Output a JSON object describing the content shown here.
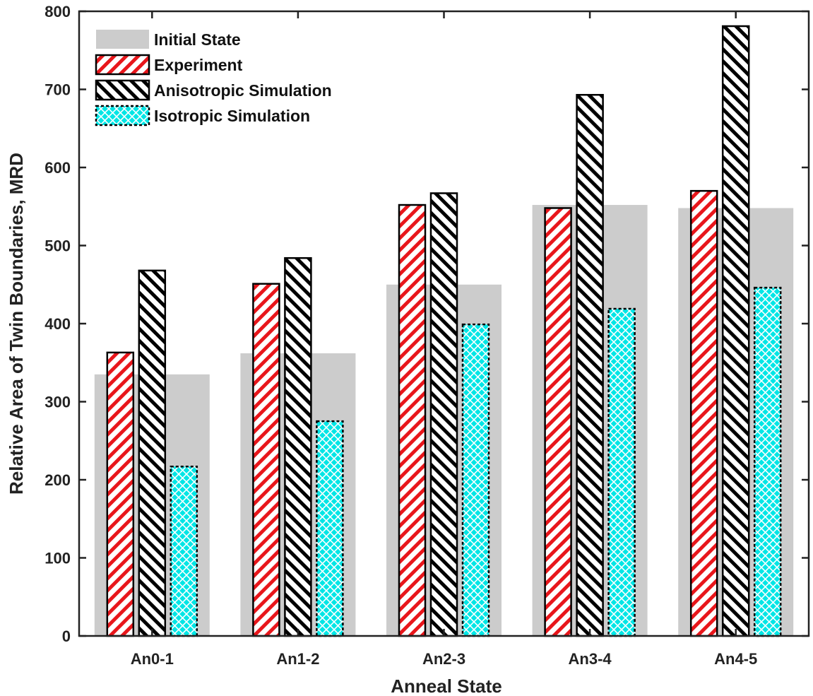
{
  "chart_data": {
    "type": "bar",
    "xlabel": "Anneal State",
    "ylabel": "Relative Area of Twin Boundaries, MRD",
    "categories": [
      "An0-1",
      "An1-2",
      "An2-3",
      "An3-4",
      "An4-5"
    ],
    "ylim": [
      0,
      800
    ],
    "yticks": [
      0,
      100,
      200,
      300,
      400,
      500,
      600,
      700,
      800
    ],
    "grid": false,
    "legend_position": "top-left",
    "series": [
      {
        "name": "Initial State",
        "values": [
          335,
          362,
          450,
          552,
          548
        ],
        "color": "#cccccc",
        "pattern": "solid-background"
      },
      {
        "name": "Experiment",
        "values": [
          363,
          451,
          552,
          548,
          570
        ],
        "color": "#e8161b",
        "pattern": "forward-diagonal-hatch"
      },
      {
        "name": "Anisotropic Simulation",
        "values": [
          468,
          484,
          567,
          693,
          781
        ],
        "color": "#000000",
        "pattern": "back-diagonal-hatch"
      },
      {
        "name": "Isotropic Simulation",
        "values": [
          217,
          275,
          399,
          419,
          446
        ],
        "color": "#00e6e6",
        "pattern": "crosshatch"
      }
    ]
  }
}
